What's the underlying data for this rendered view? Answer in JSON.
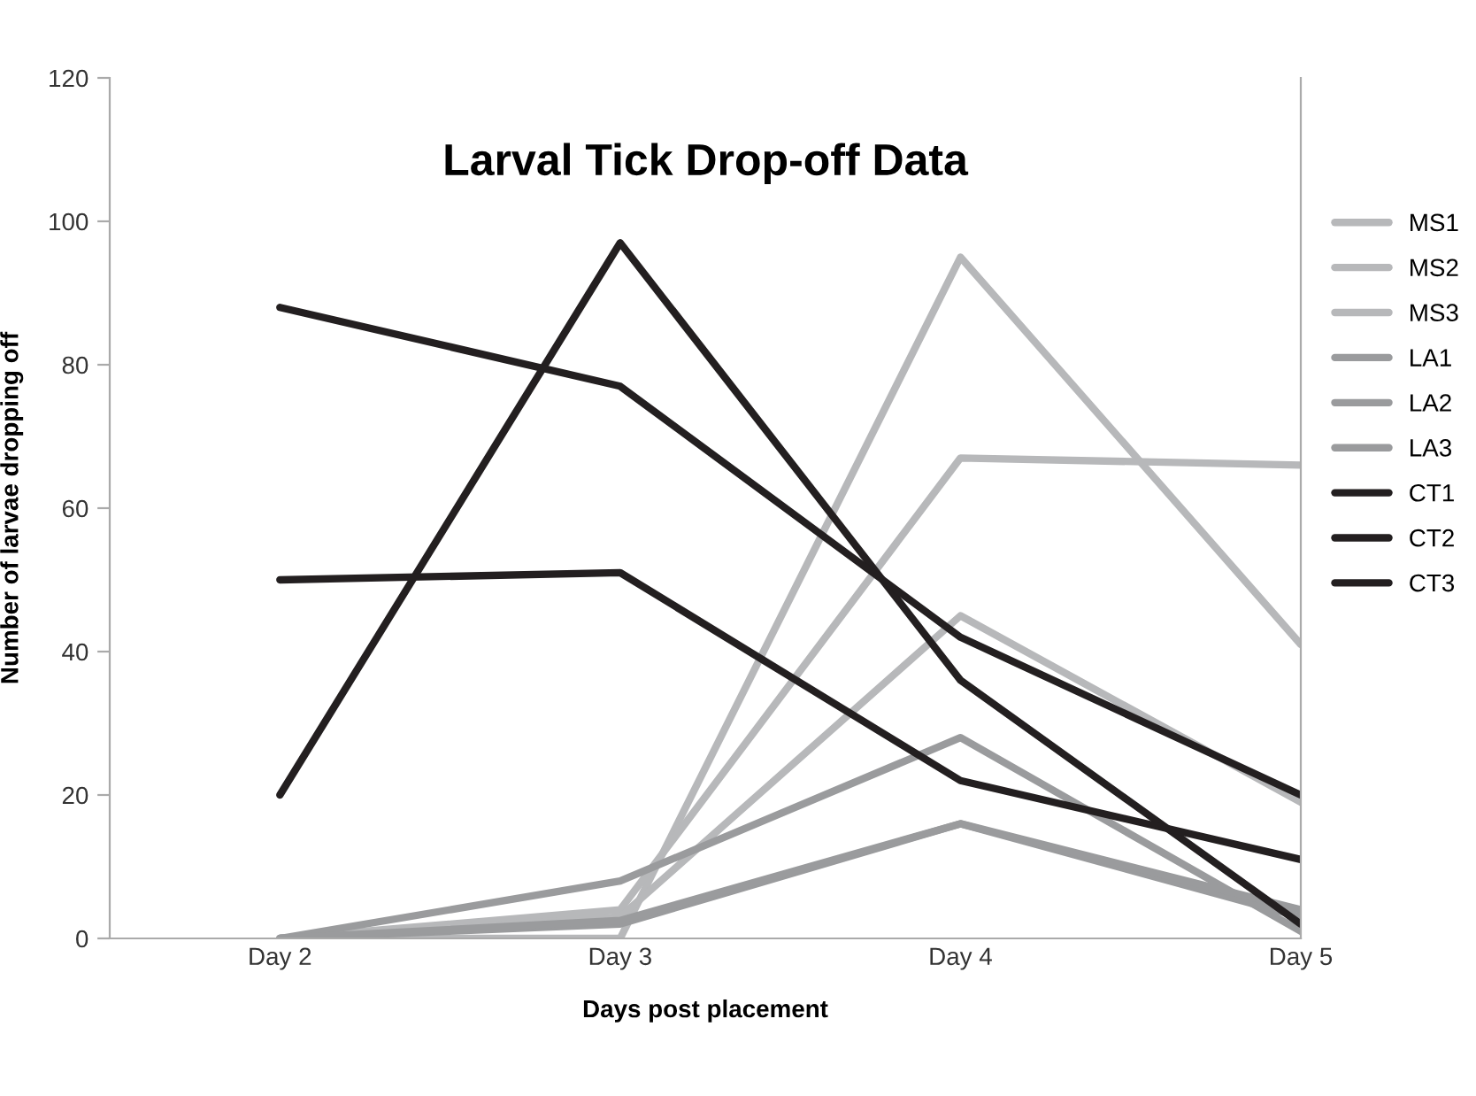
{
  "chart_data": {
    "type": "line",
    "title": "Larval Tick Drop-off Data",
    "xlabel": "Days post placement",
    "ylabel": "Number of larvae dropping off",
    "categories": [
      "Day 2",
      "Day 3",
      "Day 4",
      "Day 5"
    ],
    "series": [
      {
        "name": "MS1",
        "color": "#b7b8ba",
        "values": [
          0,
          0,
          95,
          41
        ]
      },
      {
        "name": "MS2",
        "color": "#b7b8ba",
        "values": [
          0,
          4,
          67,
          66
        ]
      },
      {
        "name": "MS3",
        "color": "#b7b8ba",
        "values": [
          0,
          3,
          45,
          19
        ]
      },
      {
        "name": "LA1",
        "color": "#9a9b9d",
        "values": [
          0,
          8,
          28,
          1
        ]
      },
      {
        "name": "LA2",
        "color": "#9a9b9d",
        "values": [
          0,
          2,
          16,
          3
        ]
      },
      {
        "name": "LA3",
        "color": "#9a9b9d",
        "values": [
          0,
          2.5,
          16,
          4
        ]
      },
      {
        "name": "CT1",
        "color": "#231f20",
        "values": [
          20,
          97,
          36,
          2
        ]
      },
      {
        "name": "CT2",
        "color": "#231f20",
        "values": [
          88,
          77,
          42,
          20
        ]
      },
      {
        "name": "CT3",
        "color": "#231f20",
        "values": [
          50,
          51,
          22,
          11
        ]
      }
    ],
    "ylim": [
      0,
      120
    ],
    "yticks": [
      0,
      20,
      40,
      60,
      80,
      100,
      120
    ],
    "legend": "right",
    "grid": false,
    "marker": "none",
    "line_style": "solid"
  }
}
